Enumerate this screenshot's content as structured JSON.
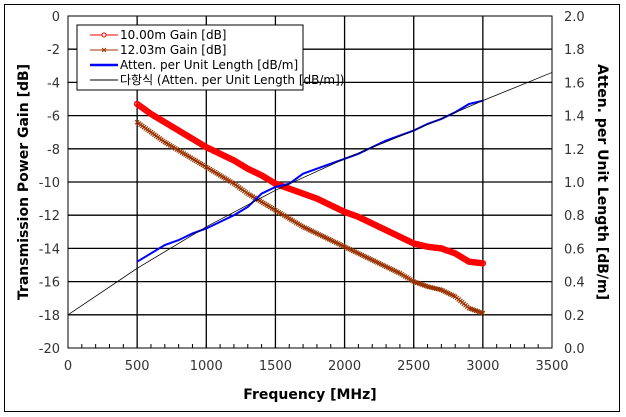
{
  "chart_data": {
    "type": "line",
    "xlabel": "Frequency [MHz]",
    "ylabel_left": "Transmission Power Gain  [dB]",
    "ylabel_right": "Atten. per Unit Length [dB/m]",
    "xlim": [
      0,
      3500
    ],
    "ylim_left": [
      -20,
      0
    ],
    "ylim_right": [
      0.0,
      2.0
    ],
    "grid": true,
    "legend_position": "top-left",
    "x_ticks": [
      "0",
      "500",
      "1000",
      "1500",
      "2000",
      "2500",
      "3000",
      "3500"
    ],
    "y_left_ticks": [
      "0",
      "-2",
      "-4",
      "-6",
      "-8",
      "-10",
      "-12",
      "-14",
      "-16",
      "-18",
      "-20"
    ],
    "y_right_ticks": [
      "2.0",
      "1.8",
      "1.6",
      "1.4",
      "1.2",
      "1.0",
      "0.8",
      "0.6",
      "0.4",
      "0.2",
      "0.0"
    ],
    "series": [
      {
        "name": "10.00m Gain [dB]",
        "axis": "left",
        "color": "#ff0000",
        "marker": "circle",
        "x": [
          500,
          600,
          700,
          800,
          900,
          1000,
          1100,
          1200,
          1300,
          1400,
          1500,
          1600,
          1700,
          1800,
          1900,
          2000,
          2100,
          2200,
          2300,
          2400,
          2500,
          2600,
          2700,
          2800,
          2900,
          3000
        ],
        "y": [
          -5.3,
          -5.9,
          -6.4,
          -6.9,
          -7.4,
          -7.9,
          -8.3,
          -8.7,
          -9.2,
          -9.6,
          -10.1,
          -10.4,
          -10.7,
          -11.0,
          -11.4,
          -11.8,
          -12.1,
          -12.5,
          -12.9,
          -13.3,
          -13.7,
          -13.9,
          -14.0,
          -14.3,
          -14.8,
          -14.9
        ]
      },
      {
        "name": "12.03m Gain [dB]",
        "axis": "left",
        "color": "#993300",
        "marker": "x",
        "x": [
          500,
          600,
          700,
          800,
          900,
          1000,
          1100,
          1200,
          1300,
          1400,
          1500,
          1600,
          1700,
          1800,
          1900,
          2000,
          2100,
          2200,
          2300,
          2400,
          2500,
          2600,
          2700,
          2800,
          2900,
          3000
        ],
        "y": [
          -6.4,
          -7.0,
          -7.6,
          -8.1,
          -8.6,
          -9.1,
          -9.6,
          -10.1,
          -10.7,
          -11.2,
          -11.7,
          -12.2,
          -12.7,
          -13.1,
          -13.5,
          -13.9,
          -14.3,
          -14.7,
          -15.1,
          -15.5,
          -16.0,
          -16.3,
          -16.5,
          -16.9,
          -17.6,
          -17.9
        ]
      },
      {
        "name": "Atten. per Unit Length [dB/m]",
        "axis": "right",
        "color": "#0000ff",
        "marker": "none",
        "x": [
          500,
          600,
          700,
          800,
          900,
          1000,
          1100,
          1200,
          1300,
          1400,
          1500,
          1600,
          1700,
          1800,
          1900,
          2000,
          2100,
          2200,
          2300,
          2400,
          2500,
          2600,
          2700,
          2800,
          2900,
          3000
        ],
        "y": [
          0.52,
          0.57,
          0.62,
          0.65,
          0.69,
          0.72,
          0.76,
          0.8,
          0.85,
          0.93,
          0.97,
          0.99,
          1.05,
          1.08,
          1.11,
          1.14,
          1.17,
          1.21,
          1.25,
          1.28,
          1.31,
          1.35,
          1.38,
          1.42,
          1.47,
          1.49
        ]
      },
      {
        "name": "다항식 (Atten. per Unit Length [dB/m])",
        "axis": "right",
        "color": "#000000",
        "marker": "none",
        "x": [
          0,
          500,
          1000,
          1500,
          2000,
          2500,
          3000,
          3500
        ],
        "y": [
          0.2,
          0.48,
          0.73,
          0.95,
          1.14,
          1.31,
          1.49,
          1.66
        ]
      }
    ]
  }
}
